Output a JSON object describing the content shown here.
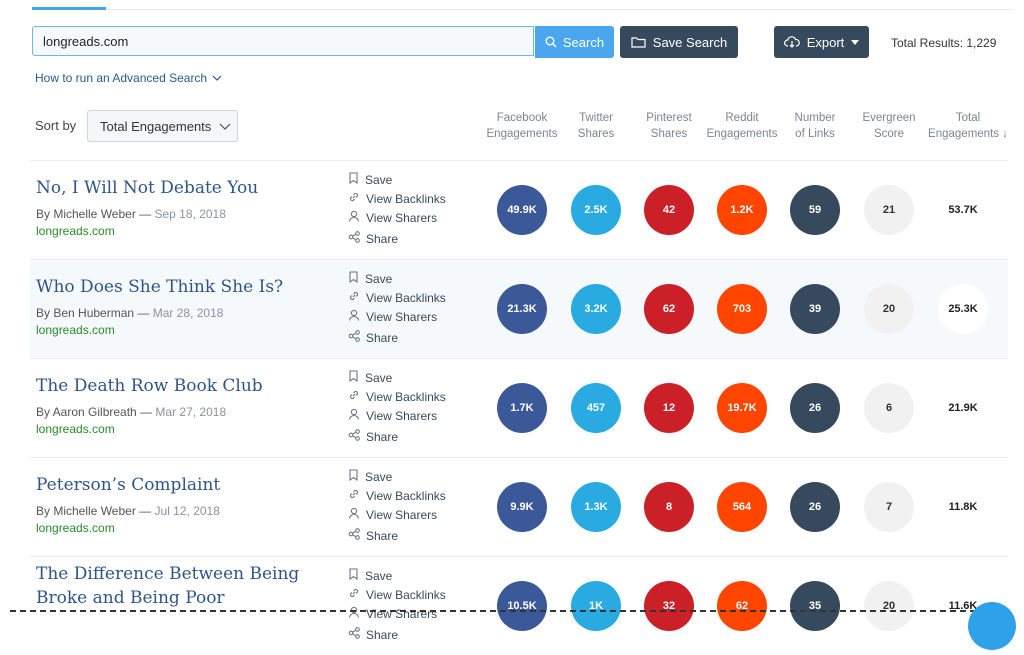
{
  "search": {
    "value": "longreads.com",
    "button_label": "Search",
    "save_label": "Save Search",
    "export_label": "Export",
    "total_results": "Total Results: 1,229"
  },
  "advanced_link": "How to run an Advanced Search",
  "sort": {
    "label": "Sort by",
    "selected": "Total Engagements"
  },
  "columns": [
    {
      "line1": "Facebook",
      "line2": "Engagements"
    },
    {
      "line1": "Twitter",
      "line2": "Shares"
    },
    {
      "line1": "Pinterest",
      "line2": "Shares"
    },
    {
      "line1": "Reddit",
      "line2": "Engagements"
    },
    {
      "line1": "Number",
      "line2": "of Links"
    },
    {
      "line1": "Evergreen",
      "line2": "Score"
    },
    {
      "line1": "Total",
      "line2": "Engagements"
    }
  ],
  "actions": [
    "Save",
    "View Backlinks",
    "View Sharers",
    "Share"
  ],
  "articles": [
    {
      "title": "No, I Will Not Debate You",
      "author": "By Michelle Weber",
      "date": "Sep 18, 2018",
      "domain": "longreads.com",
      "metrics": [
        "49.9K",
        "2.5K",
        "42",
        "1.2K",
        "59",
        "21",
        "53.7K"
      ]
    },
    {
      "title": "Who Does She Think She Is?",
      "author": "By Ben Huberman",
      "date": "Mar 28, 2018",
      "domain": "longreads.com",
      "metrics": [
        "21.3K",
        "3.2K",
        "62",
        "703",
        "39",
        "20",
        "25.3K"
      ]
    },
    {
      "title": "The Death Row Book Club",
      "author": "By Aaron Gilbreath",
      "date": "Mar 27, 2018",
      "domain": "longreads.com",
      "metrics": [
        "1.7K",
        "457",
        "12",
        "19.7K",
        "26",
        "6",
        "21.9K"
      ]
    },
    {
      "title": "Peterson’s Complaint",
      "author": "By Michelle Weber",
      "date": "Jul 12, 2018",
      "domain": "longreads.com",
      "metrics": [
        "9.9K",
        "1.3K",
        "8",
        "564",
        "26",
        "7",
        "11.8K"
      ]
    },
    {
      "title": "The Difference Between Being Broke and Being Poor",
      "author": "",
      "date": "",
      "domain": "",
      "metrics": [
        "10.5K",
        "1K",
        "32",
        "62",
        "35",
        "20",
        "11.6K"
      ]
    }
  ],
  "colors": {
    "facebook": "#3b5998",
    "twitter": "#29abe2",
    "pinterest": "#cb2027",
    "reddit": "#ff4500",
    "links": "#37495c",
    "accent": "#4aa6ef"
  }
}
